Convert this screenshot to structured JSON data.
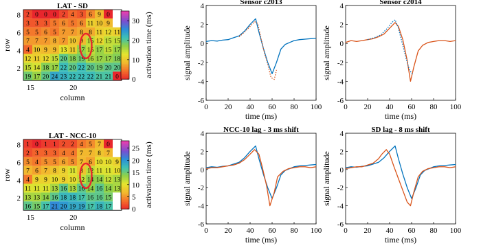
{
  "chart_data": [
    {
      "type": "heatmap",
      "title": "LAT - SD",
      "xlabel": "column",
      "ylabel": "row",
      "xticks": [
        "15",
        "20"
      ],
      "yticks": [
        "8",
        "6",
        "4",
        "2"
      ],
      "colorbar_label": "activation time (ms)",
      "colorbar_ticks": [
        "30",
        "20",
        "10",
        "0"
      ],
      "clim": [
        0,
        35
      ],
      "highlight_color": "#e8262d",
      "rows": [
        [
          "2",
          "0",
          "0",
          "0",
          "2",
          "4",
          "3",
          "6",
          "9",
          "0",
          ""
        ],
        [
          "3",
          "3",
          "3",
          "5",
          "6",
          "5",
          "6",
          "11",
          "10",
          "9",
          ""
        ],
        [
          "5",
          "5",
          "6",
          "5",
          "7",
          "7",
          "8",
          "8",
          "11",
          "12",
          "11"
        ],
        [
          "7",
          "7",
          "7",
          "8",
          "7",
          "10",
          "9",
          "15",
          "12",
          "15",
          "15"
        ],
        [
          "4",
          "10",
          "9",
          "9",
          "13",
          "11",
          "17",
          "15",
          "17",
          "15",
          "17"
        ],
        [
          "12",
          "11",
          "12",
          "15",
          "20",
          "18",
          "19",
          "16",
          "17",
          "17",
          "18"
        ],
        [
          "15",
          "14",
          "18",
          "17",
          "22",
          "20",
          "22",
          "20",
          "19",
          "20",
          "20"
        ],
        [
          "19",
          "17",
          "20",
          "24",
          "23",
          "22",
          "22",
          "22",
          "21",
          "21",
          "0"
        ]
      ]
    },
    {
      "type": "heatmap",
      "title": "LAT - NCC-10",
      "xlabel": "column",
      "ylabel": "row",
      "xticks": [
        "15",
        "20"
      ],
      "yticks": [
        "8",
        "6",
        "4",
        "2"
      ],
      "colorbar_label": "activation time (ms)",
      "colorbar_ticks": [
        "25",
        "20",
        "15",
        "10",
        "5",
        "0"
      ],
      "clim": [
        0,
        28
      ],
      "highlight_color": "#e8262d",
      "rows": [
        [
          "1",
          "0",
          "1",
          "1",
          "2",
          "2",
          "4",
          "5",
          "7",
          "0",
          ""
        ],
        [
          "2",
          "3",
          "3",
          "3",
          "4",
          "4",
          "7",
          "7",
          "8",
          "7",
          ""
        ],
        [
          "5",
          "4",
          "5",
          "5",
          "6",
          "5",
          "7",
          "6",
          "10",
          "10",
          "9"
        ],
        [
          "7",
          "6",
          "7",
          "8",
          "9",
          "11",
          "8",
          "12",
          "11",
          "11",
          "10"
        ],
        [
          "4",
          "9",
          "9",
          "10",
          "9",
          "10",
          "12",
          "14",
          "14",
          "12",
          "13"
        ],
        [
          "11",
          "11",
          "11",
          "13",
          "16",
          "13",
          "16",
          "14",
          "16",
          "14",
          "13"
        ],
        [
          "13",
          "13",
          "14",
          "16",
          "18",
          "18",
          "17",
          "16",
          "16",
          "15",
          ""
        ],
        [
          "16",
          "15",
          "17",
          "21",
          "20",
          "19",
          "19",
          "17",
          "18",
          "17",
          ""
        ]
      ]
    },
    {
      "type": "line",
      "title": "Sensor c2013",
      "xlabel": "time (ms)",
      "ylabel": "signal amplitude",
      "xlim": [
        0,
        100
      ],
      "ylim": [
        -6,
        4
      ],
      "xticks": [
        "0",
        "20",
        "40",
        "60",
        "80",
        "100"
      ],
      "yticks": [
        "4",
        "2",
        "0",
        "-2",
        "-4",
        "-6"
      ],
      "series": [
        {
          "color": "#0072bd",
          "style": "solid",
          "x": [
            0,
            5,
            10,
            15,
            20,
            25,
            30,
            35,
            40,
            45,
            48,
            52,
            56,
            60,
            64,
            68,
            72,
            76,
            80,
            85,
            90,
            95,
            100
          ],
          "y": [
            0.2,
            0.3,
            0.25,
            0.35,
            0.4,
            0.6,
            0.8,
            1.3,
            2.0,
            2.6,
            1.2,
            -0.5,
            -2.0,
            -3.2,
            -2.0,
            -0.6,
            -0.1,
            0.1,
            0.3,
            0.4,
            0.45,
            0.5,
            0.55
          ]
        },
        {
          "color": "#d95319",
          "style": "dotted",
          "x": [
            30,
            35,
            40,
            44,
            47,
            50,
            53,
            56,
            59,
            62,
            64
          ],
          "y": [
            0.7,
            1.2,
            1.8,
            2.3,
            2.1,
            0.5,
            -1.0,
            -2.2,
            -3.6,
            -3.8,
            -2.8
          ]
        }
      ]
    },
    {
      "type": "line",
      "title": "Sensor c2014",
      "xlabel": "time (ms)",
      "ylabel": "signal amplitude",
      "xlim": [
        0,
        100
      ],
      "ylim": [
        -6,
        4
      ],
      "xticks": [
        "0",
        "20",
        "40",
        "60",
        "80",
        "100"
      ],
      "yticks": [
        "4",
        "2",
        "0",
        "-2",
        "-4",
        "-6"
      ],
      "series": [
        {
          "color": "#d95319",
          "style": "solid",
          "x": [
            0,
            5,
            10,
            15,
            20,
            25,
            30,
            35,
            40,
            45,
            48,
            52,
            56,
            59,
            62,
            66,
            70,
            75,
            80,
            85,
            90,
            95,
            100
          ],
          "y": [
            0.1,
            0.3,
            0.2,
            0.3,
            0.4,
            0.5,
            0.7,
            1.0,
            1.6,
            2.2,
            1.8,
            0.4,
            -1.8,
            -4.0,
            -2.5,
            -0.8,
            -0.2,
            0.1,
            0.2,
            0.3,
            0.3,
            0.2,
            0.3
          ]
        },
        {
          "color": "#0072bd",
          "style": "dotted",
          "x": [
            20,
            26,
            32,
            38,
            42,
            45,
            48,
            52,
            55,
            58,
            61
          ],
          "y": [
            0.4,
            0.6,
            0.9,
            1.6,
            2.2,
            2.5,
            1.6,
            -0.2,
            -1.6,
            -2.8,
            -3.3
          ]
        }
      ]
    },
    {
      "type": "line",
      "title": "NCC-10 lag - 3 ms shift",
      "xlabel": "time (ms)",
      "ylabel": "signal amplitude",
      "xlim": [
        0,
        100
      ],
      "ylim": [
        -6,
        4
      ],
      "xticks": [
        "0",
        "20",
        "40",
        "60",
        "80",
        "100"
      ],
      "yticks": [
        "4",
        "2",
        "0",
        "-2",
        "-4",
        "-6"
      ],
      "series": [
        {
          "color": "#0072bd",
          "style": "solid",
          "x": [
            0,
            5,
            10,
            15,
            20,
            25,
            30,
            35,
            40,
            45,
            48,
            52,
            56,
            60,
            64,
            68,
            72,
            76,
            80,
            85,
            90,
            95,
            100
          ],
          "y": [
            0.2,
            0.3,
            0.25,
            0.35,
            0.4,
            0.6,
            0.8,
            1.3,
            2.0,
            2.6,
            1.2,
            -0.5,
            -2.0,
            -3.2,
            -2.0,
            -0.6,
            -0.1,
            0.1,
            0.3,
            0.4,
            0.45,
            0.5,
            0.55
          ]
        },
        {
          "color": "#d95319",
          "style": "solid",
          "x": [
            0,
            5,
            10,
            15,
            20,
            25,
            30,
            35,
            40,
            44,
            48,
            51,
            55,
            58,
            62,
            65,
            70,
            75,
            80,
            85,
            90,
            95,
            100
          ],
          "y": [
            0.1,
            0.2,
            0.2,
            0.3,
            0.4,
            0.5,
            0.7,
            1.1,
            1.7,
            2.2,
            1.7,
            0.3,
            -1.8,
            -4.0,
            -2.5,
            -0.8,
            -0.2,
            0.1,
            0.2,
            0.3,
            0.3,
            0.2,
            0.3
          ]
        }
      ]
    },
    {
      "type": "line",
      "title": "SD lag - 8 ms shift",
      "xlabel": "time (ms)",
      "ylabel": "signal amplitude",
      "xlim": [
        0,
        100
      ],
      "ylim": [
        -6,
        4
      ],
      "xticks": [
        "0",
        "20",
        "40",
        "60",
        "80",
        "100"
      ],
      "yticks": [
        "4",
        "2",
        "0",
        "-2",
        "-4",
        "-6"
      ],
      "series": [
        {
          "color": "#0072bd",
          "style": "solid",
          "x": [
            0,
            5,
            10,
            15,
            20,
            25,
            30,
            35,
            40,
            45,
            48,
            52,
            56,
            60,
            64,
            68,
            72,
            76,
            80,
            85,
            90,
            95,
            100
          ],
          "y": [
            0.2,
            0.3,
            0.25,
            0.35,
            0.4,
            0.6,
            0.8,
            1.3,
            2.0,
            2.6,
            1.2,
            -0.5,
            -2.0,
            -3.2,
            -2.0,
            -0.6,
            -0.1,
            0.1,
            0.3,
            0.4,
            0.45,
            0.5,
            0.55
          ]
        },
        {
          "color": "#d95319",
          "style": "solid",
          "x": [
            0,
            5,
            10,
            15,
            20,
            25,
            30,
            33,
            37,
            40,
            44,
            48,
            52,
            56,
            59,
            62,
            66,
            70,
            75,
            80,
            85,
            90,
            95,
            100
          ],
          "y": [
            0.1,
            0.2,
            0.3,
            0.3,
            0.5,
            0.7,
            1.2,
            1.7,
            2.2,
            1.7,
            0.3,
            -1.0,
            -2.3,
            -3.6,
            -4.0,
            -2.5,
            -0.8,
            -0.2,
            0.1,
            0.2,
            0.3,
            0.3,
            0.2,
            0.3
          ]
        }
      ]
    }
  ]
}
